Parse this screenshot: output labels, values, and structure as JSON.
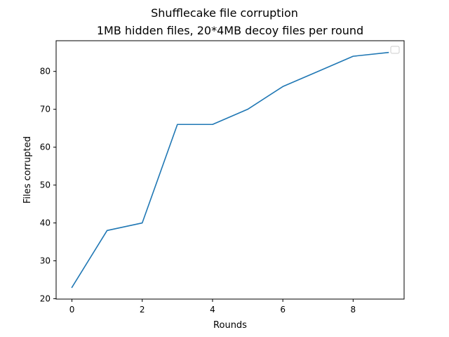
{
  "chart_data": {
    "type": "line",
    "title": "Shufflecake file corruption",
    "subtitle": "1MB hidden files, 20*4MB decoy files per round",
    "xlabel": "Rounds",
    "ylabel": "Files corrupted",
    "xlim": [
      -0.45,
      9.45
    ],
    "ylim": [
      19.9,
      88.1
    ],
    "xticks": [
      0,
      2,
      4,
      6,
      8
    ],
    "yticks": [
      20,
      30,
      40,
      50,
      60,
      70,
      80
    ],
    "grid": false,
    "legend": "top-right (empty)",
    "series": [
      {
        "x": [
          0,
          1,
          2,
          3,
          4,
          5,
          6,
          7,
          8,
          9
        ],
        "y": [
          23,
          38,
          40,
          66,
          66,
          70,
          76,
          80,
          84,
          85
        ],
        "color": "#1f77b4"
      }
    ]
  }
}
